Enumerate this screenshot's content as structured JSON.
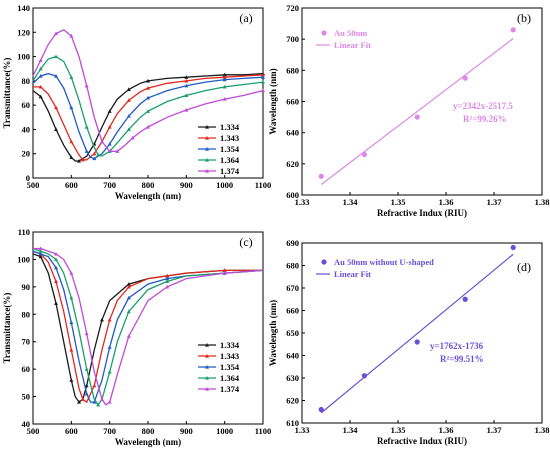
{
  "chart_data": [
    {
      "panel_label": "(a)",
      "type": "line",
      "xlabel": "Wavelength (nm)",
      "ylabel": "Transmittance(%)",
      "xlim": [
        500,
        1100
      ],
      "ylim": [
        0,
        140
      ],
      "xticks": [
        "500",
        "600",
        "700",
        "800",
        "900",
        "1000",
        "1100"
      ],
      "yticks": [
        "0",
        "20",
        "40",
        "60",
        "80",
        "100",
        "120",
        "140"
      ],
      "legend_position": "lower-right",
      "series": [
        {
          "name": "1.334",
          "color": "#1a1a1a",
          "marker": "triangle-up",
          "x": [
            500,
            520,
            540,
            560,
            580,
            600,
            610,
            620,
            640,
            660,
            680,
            700,
            720,
            750,
            780,
            800,
            850,
            900,
            950,
            1000,
            1050,
            1100
          ],
          "y": [
            72,
            67,
            55,
            40,
            27,
            17,
            14,
            14,
            18,
            28,
            42,
            55,
            65,
            73,
            78,
            80,
            82,
            83,
            84,
            85,
            85,
            86
          ]
        },
        {
          "name": "1.343",
          "color": "#e0281e",
          "marker": "triangle-up",
          "x": [
            500,
            520,
            540,
            560,
            580,
            600,
            620,
            630,
            640,
            660,
            680,
            700,
            720,
            750,
            780,
            800,
            850,
            900,
            950,
            1000,
            1050,
            1100
          ],
          "y": [
            75,
            75,
            69,
            58,
            44,
            30,
            19,
            15,
            15,
            20,
            30,
            42,
            53,
            64,
            71,
            74,
            78,
            80,
            82,
            83,
            84,
            85
          ]
        },
        {
          "name": "1.354",
          "color": "#1f5bc4",
          "marker": "triangle-up",
          "x": [
            500,
            520,
            540,
            560,
            580,
            600,
            620,
            640,
            650,
            660,
            680,
            700,
            720,
            750,
            780,
            800,
            850,
            900,
            950,
            1000,
            1050,
            1100
          ],
          "y": [
            78,
            84,
            86,
            84,
            74,
            58,
            38,
            22,
            17,
            16,
            20,
            28,
            38,
            51,
            61,
            66,
            72,
            76,
            79,
            81,
            82,
            83
          ]
        },
        {
          "name": "1.364",
          "color": "#1a9e6e",
          "marker": "triangle-up",
          "x": [
            500,
            520,
            540,
            560,
            580,
            600,
            620,
            640,
            660,
            670,
            680,
            700,
            720,
            750,
            780,
            800,
            850,
            900,
            950,
            1000,
            1050,
            1100
          ],
          "y": [
            80,
            90,
            98,
            100,
            96,
            83,
            64,
            42,
            25,
            19,
            18,
            22,
            29,
            40,
            50,
            55,
            63,
            68,
            72,
            75,
            77,
            79
          ]
        },
        {
          "name": "1.374",
          "color": "#c04ad8",
          "marker": "triangle-up",
          "x": [
            500,
            520,
            540,
            560,
            580,
            600,
            620,
            640,
            660,
            680,
            700,
            720,
            740,
            760,
            780,
            800,
            850,
            900,
            950,
            1000,
            1050,
            1100
          ],
          "y": [
            84,
            97,
            110,
            119,
            122,
            117,
            100,
            76,
            50,
            30,
            22,
            22,
            27,
            33,
            38,
            42,
            50,
            56,
            61,
            65,
            68,
            72
          ]
        }
      ]
    },
    {
      "panel_label": "(b)",
      "type": "scatter",
      "xlabel": "Refractive Indux (RIU)",
      "ylabel": "Wavelength (nm)",
      "xlim": [
        1.33,
        1.38
      ],
      "ylim": [
        600,
        720
      ],
      "xticks": [
        "1.33",
        "1.34",
        "1.35",
        "1.36",
        "1.37",
        "1.38"
      ],
      "yticks": [
        "600",
        "620",
        "640",
        "660",
        "680",
        "700",
        "720"
      ],
      "legend_position": "top-left",
      "color": "#dd88e6",
      "series": [
        {
          "name": "Au 50nm",
          "x": [
            1.334,
            1.343,
            1.354,
            1.364,
            1.374
          ],
          "y": [
            612,
            626,
            650,
            675,
            706
          ]
        }
      ],
      "fit": {
        "name": "Linear Fit",
        "slope": 2342,
        "intercept": -2517.5,
        "x_range": [
          1.334,
          1.374
        ]
      },
      "annotations": [
        "y=2342x-2517.5",
        "R²=99.26%"
      ]
    },
    {
      "panel_label": "(c)",
      "type": "line",
      "xlabel": "Wavelength (nm)",
      "ylabel": "Transmittance(%)",
      "xlim": [
        500,
        1100
      ],
      "ylim": [
        40,
        110
      ],
      "xticks": [
        "500",
        "600",
        "700",
        "800",
        "900",
        "1000",
        "1100"
      ],
      "yticks": [
        "40",
        "50",
        "60",
        "70",
        "80",
        "90",
        "100",
        "110"
      ],
      "legend_position": "lower-right",
      "series": [
        {
          "name": "1.334",
          "color": "#1a1a1a",
          "marker": "triangle-up",
          "x": [
            500,
            520,
            540,
            560,
            580,
            600,
            610,
            620,
            630,
            640,
            660,
            680,
            700,
            750,
            800,
            850,
            900,
            1000,
            1100
          ],
          "y": [
            102,
            101,
            95,
            84,
            70,
            56,
            50,
            48,
            49,
            54,
            67,
            78,
            85,
            91,
            93,
            94,
            95,
            96,
            96
          ]
        },
        {
          "name": "1.343",
          "color": "#e0281e",
          "marker": "triangle-up",
          "x": [
            500,
            520,
            540,
            560,
            580,
            600,
            620,
            630,
            640,
            660,
            680,
            700,
            720,
            750,
            800,
            850,
            900,
            1000,
            1100
          ],
          "y": [
            103,
            102,
            99,
            92,
            81,
            67,
            53,
            49,
            48,
            54,
            67,
            78,
            85,
            90,
            93,
            94,
            95,
            96,
            96
          ]
        },
        {
          "name": "1.354",
          "color": "#1f5bc4",
          "marker": "triangle-up",
          "x": [
            500,
            520,
            540,
            560,
            580,
            600,
            620,
            640,
            650,
            660,
            680,
            700,
            720,
            750,
            800,
            850,
            900,
            1000,
            1100
          ],
          "y": [
            103,
            102,
            101,
            97,
            89,
            77,
            63,
            51,
            48,
            48,
            56,
            68,
            78,
            86,
            91,
            93,
            94,
            95,
            96
          ]
        },
        {
          "name": "1.364",
          "color": "#1a9e6e",
          "marker": "triangle-up",
          "x": [
            500,
            520,
            540,
            560,
            580,
            600,
            620,
            640,
            660,
            670,
            680,
            700,
            720,
            750,
            800,
            850,
            900,
            1000,
            1100
          ],
          "y": [
            104,
            103,
            102,
            100,
            95,
            86,
            74,
            60,
            49,
            47,
            49,
            59,
            70,
            81,
            89,
            92,
            94,
            95,
            96
          ]
        },
        {
          "name": "1.374",
          "color": "#c04ad8",
          "marker": "triangle-up",
          "x": [
            500,
            520,
            540,
            560,
            580,
            600,
            620,
            640,
            660,
            680,
            690,
            700,
            720,
            750,
            800,
            850,
            900,
            1000,
            1100
          ],
          "y": [
            104,
            104,
            103,
            102,
            100,
            95,
            86,
            73,
            59,
            49,
            47,
            48,
            58,
            72,
            85,
            90,
            93,
            95,
            96
          ]
        }
      ]
    },
    {
      "panel_label": "(d)",
      "type": "scatter",
      "xlabel": "Refractive Indux (RIU)",
      "ylabel": "Wavelength (nm)",
      "xlim": [
        1.33,
        1.38
      ],
      "ylim": [
        610,
        690
      ],
      "xticks": [
        "1.33",
        "1.34",
        "1.35",
        "1.36",
        "1.37",
        "1.38"
      ],
      "yticks": [
        "610",
        "620",
        "630",
        "640",
        "650",
        "660",
        "670",
        "680",
        "690"
      ],
      "legend_position": "top-left",
      "color": "#6a4fd6",
      "series": [
        {
          "name": "Au 50nm without U-shaped",
          "x": [
            1.334,
            1.343,
            1.354,
            1.364,
            1.374
          ],
          "y": [
            616,
            631,
            646,
            665,
            688
          ]
        }
      ],
      "fit": {
        "name": "Linear Fit",
        "slope": 1762,
        "intercept": -1736,
        "x_range": [
          1.334,
          1.374
        ]
      },
      "annotations": [
        "y=1762x-1736",
        "R²=99.51%"
      ]
    }
  ]
}
